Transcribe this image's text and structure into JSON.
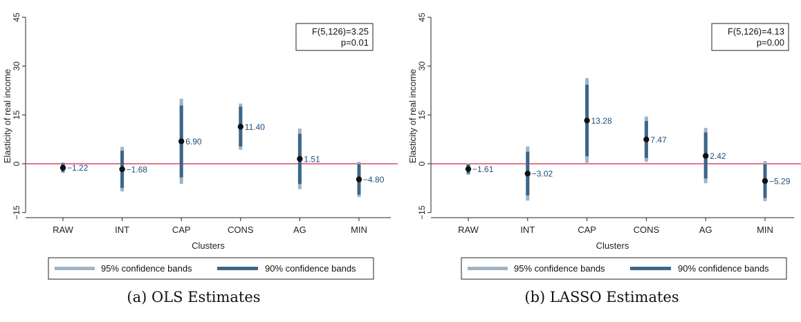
{
  "chart_data": [
    {
      "type": "scatter",
      "ylabel": "Elasticity of real income",
      "xlabel": "Clusters",
      "ylim": [
        -15,
        45
      ],
      "yticks": [
        -15,
        0,
        15,
        30,
        45
      ],
      "categories": [
        "RAW",
        "INT",
        "CAP",
        "CONS",
        "AG",
        "MIN"
      ],
      "estimates": [
        -1.22,
        -1.68,
        6.9,
        11.4,
        1.51,
        -4.8
      ],
      "point_labels": [
        "−1.22",
        "−1.68",
        "6.90",
        "11.40",
        "1.51",
        "−4.80"
      ],
      "ci95": [
        [
          -2.8,
          0.4
        ],
        [
          -8.5,
          5.2
        ],
        [
          -6.2,
          20.0
        ],
        [
          4.3,
          18.5
        ],
        [
          -7.8,
          10.8
        ],
        [
          -10.2,
          0.6
        ]
      ],
      "ci90": [
        [
          -2.5,
          0.1
        ],
        [
          -7.4,
          4.0
        ],
        [
          -4.2,
          17.9
        ],
        [
          5.3,
          17.5
        ],
        [
          -6.2,
          9.2
        ],
        [
          -9.5,
          -0.1
        ]
      ],
      "reference_line": 0,
      "stat_box": [
        "F(5,126)=3.25",
        "p=0.01"
      ],
      "legend": [
        "95% confidence bands",
        "90% confidence bands"
      ],
      "legend_position": "bottom",
      "colors": {
        "ci95": "#9fb4c6",
        "ci90": "#3c6689",
        "point": "#111111",
        "label": "#1f4e79",
        "ref": "#d62246"
      },
      "caption": "(a) OLS Estimates"
    },
    {
      "type": "scatter",
      "ylabel": "Elasticity of real income",
      "xlabel": "Clusters",
      "ylim": [
        -15,
        45
      ],
      "yticks": [
        -15,
        0,
        15,
        30,
        45
      ],
      "categories": [
        "RAW",
        "INT",
        "CAP",
        "CONS",
        "AG",
        "MIN"
      ],
      "estimates": [
        -1.61,
        -3.02,
        13.28,
        7.47,
        2.42,
        -5.29
      ],
      "point_labels": [
        "−1.61",
        "−3.02",
        "13.28",
        "7.47",
        "2.42",
        "−5.29"
      ],
      "ci95": [
        [
          -3.4,
          0.1
        ],
        [
          -11.3,
          5.3
        ],
        [
          0.3,
          26.3
        ],
        [
          0.6,
          14.5
        ],
        [
          -6.0,
          11.0
        ],
        [
          -11.5,
          0.8
        ]
      ],
      "ci90": [
        [
          -3.0,
          -0.2
        ],
        [
          -9.7,
          3.7
        ],
        [
          2.3,
          24.3
        ],
        [
          1.8,
          13.1
        ],
        [
          -4.5,
          9.6
        ],
        [
          -10.5,
          -0.1
        ]
      ],
      "reference_line": 0,
      "stat_box": [
        "F(5,126)=4.13",
        "p=0.00"
      ],
      "legend": [
        "95% confidence bands",
        "90% confidence bands"
      ],
      "legend_position": "bottom",
      "colors": {
        "ci95": "#9fb4c6",
        "ci90": "#3c6689",
        "point": "#111111",
        "label": "#1f4e79",
        "ref": "#d62246"
      },
      "caption": "(b) LASSO Estimates"
    }
  ]
}
